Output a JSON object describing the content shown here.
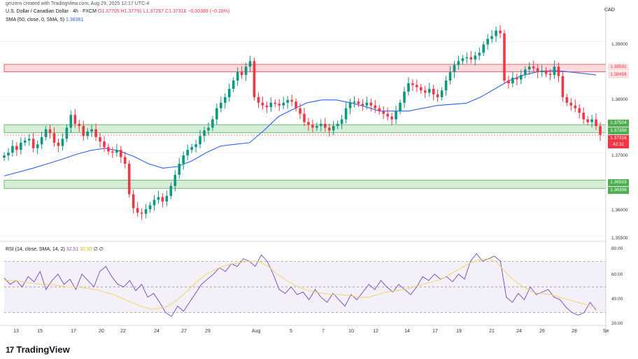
{
  "header": {
    "text": "gmzern created with TradingView.com, Aug 29, 2025 12:17 UTC-4"
  },
  "legend": {
    "symbol": "U.S. Dollar / Canadian Dollar · 4h · FXCM",
    "open": "O1.37705",
    "high": "H1.37791",
    "low": "L1.37267",
    "close": "C1.37316",
    "change": "−0.00389 (−0.28%)",
    "sma_label": "SMA (50, close, 0, SMA, 5)",
    "sma_value": "1.38361"
  },
  "rsi_legend": {
    "label": "RSI (14, close, SMA, 14, 2)",
    "rsi": "32.51",
    "rsi_ma": "32.93",
    "extra": "∅ ∅"
  },
  "currency": "CAD",
  "price_axis": [
    "1.39000",
    "1.38000",
    "1.37000",
    "1.36000",
    "1.35500"
  ],
  "rsi_axis": [
    "80.00",
    "60.00",
    "40.00",
    "20.00"
  ],
  "price_labels": [
    {
      "text": "1.38591",
      "kind": "resistance"
    },
    {
      "text": "1.38456",
      "kind": "resistance"
    },
    {
      "text": "1.37504",
      "kind": "support"
    },
    {
      "text": "1.37358",
      "kind": "support"
    },
    {
      "text": "1.37316",
      "kind": "last"
    },
    {
      "text": "42:11",
      "kind": "countdown"
    },
    {
      "text": "1.36503",
      "kind": "support"
    },
    {
      "text": "1.36356",
      "kind": "support"
    }
  ],
  "x_ticks": [
    "13",
    "15",
    "17",
    "20",
    "22",
    "24",
    "27",
    "29",
    "Aug",
    "5",
    "7",
    "10",
    "12",
    "14",
    "17",
    "19",
    "21",
    "24",
    "26",
    "28",
    "Se"
  ],
  "brand": {
    "logo": "17",
    "name": "TradingView"
  },
  "colors": {
    "up": "#089981",
    "down": "#f23645",
    "sma": "#2962ff",
    "rsi": "#7e57c2",
    "rsi_ma": "#f5d36b"
  },
  "chart_data": {
    "type": "candlestick",
    "title": "U.S. Dollar / Canadian Dollar · 4h · FXCM",
    "ylim": [
      1.354,
      1.3965
    ],
    "zones": [
      {
        "from": 1.38456,
        "to": 1.38591,
        "kind": "resistance"
      },
      {
        "from": 1.37358,
        "to": 1.37504,
        "kind": "support"
      },
      {
        "from": 1.36356,
        "to": 1.36503,
        "kind": "support"
      }
    ],
    "close_path": [
      1.3695,
      1.37,
      1.3712,
      1.3705,
      1.3718,
      1.3722,
      1.3725,
      1.3708,
      1.3715,
      1.3728,
      1.3742,
      1.3735,
      1.3718,
      1.3712,
      1.3725,
      1.3745,
      1.3768,
      1.3752,
      1.3748,
      1.373,
      1.3738,
      1.3742,
      1.3728,
      1.372,
      1.371,
      1.3702,
      1.37,
      1.3705,
      1.3692,
      1.368,
      1.3625,
      1.36,
      1.3592,
      1.359,
      1.3598,
      1.3605,
      1.3615,
      1.362,
      1.3612,
      1.3622,
      1.364,
      1.366,
      1.368,
      1.3695,
      1.3705,
      1.371,
      1.3715,
      1.373,
      1.374,
      1.3745,
      1.376,
      1.378,
      1.379,
      1.38,
      1.3815,
      1.383,
      1.3845,
      1.384,
      1.3855,
      1.3865,
      1.38,
      1.379,
      1.3785,
      1.3782,
      1.379,
      1.3788,
      1.3785,
      1.379,
      1.3795,
      1.3792,
      1.378,
      1.377,
      1.3755,
      1.375,
      1.3745,
      1.3748,
      1.3752,
      1.3745,
      1.374,
      1.3748,
      1.3752,
      1.376,
      1.378,
      1.379,
      1.3792,
      1.3788,
      1.3785,
      1.379,
      1.3785,
      1.378,
      1.3775,
      1.377,
      1.3765,
      1.376,
      1.3775,
      1.379,
      1.381,
      1.3825,
      1.3822,
      1.3818,
      1.3812,
      1.3808,
      1.3815,
      1.3805,
      1.38,
      1.3812,
      1.383,
      1.3845,
      1.3858,
      1.3865,
      1.387,
      1.3872,
      1.3868,
      1.3875,
      1.388,
      1.3895,
      1.3905,
      1.391,
      1.392,
      1.3915,
      1.383,
      1.3825,
      1.3835,
      1.3832,
      1.384,
      1.385,
      1.3855,
      1.3852,
      1.3845,
      1.3848,
      1.3842,
      1.384,
      1.3855,
      1.3838,
      1.38,
      1.379,
      1.3785,
      1.378,
      1.3772,
      1.376,
      1.3755,
      1.376,
      1.3748,
      1.3732
    ],
    "sma_path": [
      1.3658,
      1.3665,
      1.3672,
      1.368,
      1.3688,
      1.3697,
      1.3704,
      1.3708,
      1.3703,
      1.3693,
      1.368,
      1.3672,
      1.3675,
      1.3685,
      1.37,
      1.3712,
      1.3715,
      1.3718,
      1.374,
      1.3765,
      1.3778,
      1.379,
      1.3795,
      1.3795,
      1.379,
      1.3783,
      1.3775,
      1.3775,
      1.3775,
      1.378,
      1.3785,
      1.3787,
      1.3789,
      1.38,
      1.3815,
      1.383,
      1.384,
      1.3846,
      1.3848,
      1.3846,
      1.3843,
      1.384
    ],
    "rsi_path": [
      57,
      52,
      55,
      50,
      58,
      54,
      62,
      48,
      55,
      60,
      52,
      56,
      48,
      60,
      55,
      50,
      62,
      66,
      58,
      52,
      50,
      55,
      47,
      52,
      42,
      45,
      38,
      30,
      27,
      35,
      31,
      38,
      45,
      52,
      56,
      60,
      65,
      62,
      68,
      66,
      72,
      70,
      66,
      75,
      70,
      60,
      48,
      45,
      50,
      44,
      46,
      40,
      48,
      42,
      38,
      45,
      40,
      35,
      44,
      40,
      46,
      52,
      48,
      55,
      50,
      46,
      52,
      48,
      44,
      50,
      58,
      55,
      60,
      56,
      58,
      54,
      60,
      56,
      70,
      76,
      70,
      72,
      74,
      70,
      42,
      38,
      45,
      40,
      50,
      44,
      46,
      48,
      42,
      40,
      34,
      30,
      28,
      30,
      38,
      32
    ],
    "rsi_ma_path": [
      55,
      55,
      54,
      53,
      52,
      52,
      51,
      50,
      50,
      49,
      48,
      46,
      44,
      41,
      38,
      35,
      33,
      33,
      35,
      40,
      46,
      53,
      59,
      63,
      66,
      68,
      69,
      70,
      70,
      66,
      60,
      55,
      51,
      48,
      46,
      45,
      44,
      44,
      43,
      42,
      42,
      44,
      46,
      47,
      48,
      50,
      52,
      54,
      56,
      60,
      64,
      68,
      71,
      72,
      70,
      62,
      55,
      50,
      46,
      45,
      44,
      42,
      40,
      38,
      36,
      34
    ],
    "rsi_ylim": [
      20,
      80
    ],
    "rsi_levels": [
      70,
      50,
      30
    ]
  }
}
